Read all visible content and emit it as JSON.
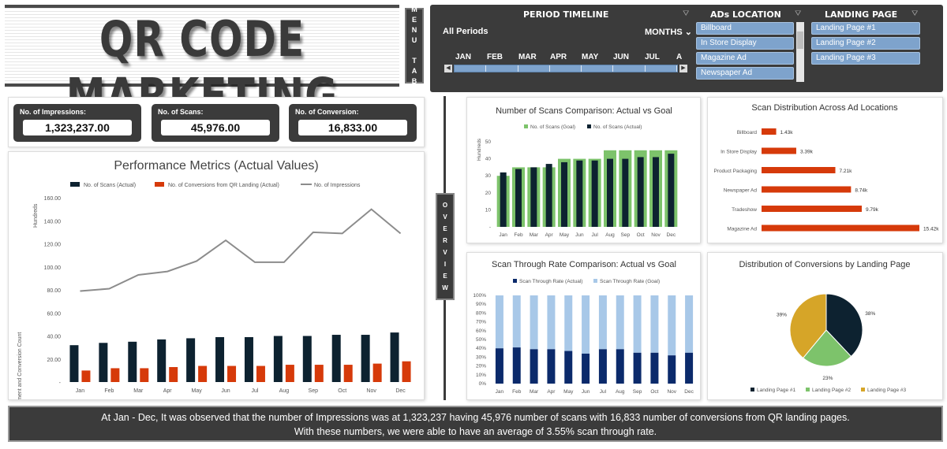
{
  "title": "QR CODE MARKETING",
  "menu_tab": [
    "M",
    "E",
    "N",
    "U",
    "",
    "T",
    "A",
    "B"
  ],
  "overview_tab": [
    "O",
    "V",
    "E",
    "R",
    "V",
    "I",
    "E",
    "W"
  ],
  "period_timeline": {
    "title": "PERIOD TIMELINE",
    "all_periods": "All Periods",
    "months_label": "MONTHS",
    "months": [
      "JAN",
      "FEB",
      "MAR",
      "APR",
      "MAY",
      "JUN",
      "JUL",
      "A"
    ]
  },
  "ads_location": {
    "title": "ADs LOCATION",
    "items": [
      "Billboard",
      "In Store Display",
      "Magazine Ad",
      "Newspaper Ad"
    ]
  },
  "landing_page": {
    "title": "LANDING PAGE",
    "items": [
      "Landing Page #1",
      "Landing Page #2",
      "Landing Page #3"
    ]
  },
  "kpis": [
    {
      "label": "No. of Impressions:",
      "value": "1,323,237.00"
    },
    {
      "label": "No. of Scans:",
      "value": "45,976.00"
    },
    {
      "label": "No. of Conversion:",
      "value": "16,833.00"
    }
  ],
  "footer": {
    "line1": "At Jan - Dec, It was observed that the number of Impressions was at 1,323,237 having 45,976 number of scans with 16,833 number of conversions from QR landing pages.",
    "line2": "With these numbers, we were able to have an average of 3.55% scan through rate."
  },
  "colors": {
    "dark": "#0d2230",
    "navy": "#0b2a6b",
    "orange": "#d63a0a",
    "green": "#7dc36b",
    "lightblue": "#a8c8e8",
    "gray_line": "#8c8c8c",
    "gold": "#d6a528"
  },
  "chart_data": [
    {
      "type": "bar",
      "title": "Performance Metrics (Actual Values)",
      "ylabel": "Engagement and Conversion Count",
      "yunit": "Hundreds",
      "ylim": [
        0,
        160
      ],
      "yticks": [
        "-",
        "20.00",
        "40.00",
        "60.00",
        "80.00",
        "100.00",
        "120.00",
        "140.00",
        "160.00"
      ],
      "categories": [
        "Jan",
        "Feb",
        "Mar",
        "Apr",
        "May",
        "Jun",
        "Jul",
        "Aug",
        "Sep",
        "Oct",
        "Nov",
        "Dec"
      ],
      "series": [
        {
          "name": "No. of Scans (Actual)",
          "kind": "bar",
          "values": [
            32,
            34,
            35,
            37,
            38,
            39,
            39,
            40,
            40,
            41,
            41,
            43
          ]
        },
        {
          "name": "No. of Conversions from QR Landing (Actual)",
          "kind": "bar",
          "values": [
            10,
            12,
            12,
            13,
            14,
            14,
            14,
            15,
            15,
            15,
            16,
            18
          ]
        },
        {
          "name": "No. of Impressions",
          "kind": "line",
          "values": [
            79,
            81,
            93,
            96,
            105,
            123,
            104,
            104,
            130,
            129,
            150,
            129
          ]
        }
      ],
      "legend": "top"
    },
    {
      "type": "bar",
      "title": "Number of Scans Comparison: Actual vs Goal",
      "yunit": "Hundreds",
      "ylim": [
        0,
        50
      ],
      "yticks": [
        "-",
        "10",
        "20",
        "30",
        "40",
        "50"
      ],
      "categories": [
        "Jan",
        "Feb",
        "Mar",
        "Apr",
        "May",
        "Jun",
        "Jul",
        "Aug",
        "Sep",
        "Oct",
        "Nov",
        "Dec"
      ],
      "series": [
        {
          "name": "No. of Scans (Goal)",
          "values": [
            30,
            35,
            35,
            35,
            40,
            40,
            40,
            45,
            45,
            45,
            45,
            45
          ]
        },
        {
          "name": "No. of Scans (Actual)",
          "values": [
            32,
            34,
            35,
            37,
            38,
            39,
            39,
            40,
            40,
            41,
            41,
            43
          ]
        }
      ],
      "legend": "top"
    },
    {
      "type": "bar",
      "title": "Scan Distribution Across Ad Locations",
      "orientation": "horizontal",
      "categories": [
        "Billboard",
        "In Store Display",
        "Product Packaging",
        "Newspaper Ad",
        "Tradeshow",
        "Magazine Ad"
      ],
      "values": [
        1.43,
        3.39,
        7.21,
        8.74,
        9.79,
        15.42
      ],
      "labels": [
        "1.43k",
        "3.39k",
        "7.21k",
        "8.74k",
        "9.79k",
        "15.42k"
      ]
    },
    {
      "type": "bar",
      "title": "Scan Through Rate Comparison: Actual vs Goal",
      "stacked": "100%",
      "yticks": [
        "0%",
        "10%",
        "20%",
        "30%",
        "40%",
        "50%",
        "60%",
        "70%",
        "80%",
        "90%",
        "100%"
      ],
      "categories": [
        "Jan",
        "Feb",
        "Mar",
        "Apr",
        "May",
        "Jun",
        "Jul",
        "Aug",
        "Sep",
        "Oct",
        "Nov",
        "Dec"
      ],
      "series": [
        {
          "name": "Scan Through Rate (Actual)",
          "values": [
            40,
            41,
            39,
            39,
            37,
            34,
            39,
            39,
            35,
            35,
            32,
            35
          ]
        },
        {
          "name": "Scan Through Rate (Goal)",
          "values": [
            60,
            59,
            61,
            61,
            63,
            66,
            61,
            61,
            65,
            65,
            68,
            65
          ]
        }
      ],
      "legend": "top"
    },
    {
      "type": "pie",
      "title": "Distribution of Conversions by Landing Page",
      "categories": [
        "Landing Page #1",
        "Landing Page #2",
        "Landing Page #3"
      ],
      "values": [
        38,
        23,
        39
      ],
      "labels": [
        "38%",
        "23%",
        "39%"
      ],
      "legend": "bottom"
    }
  ]
}
